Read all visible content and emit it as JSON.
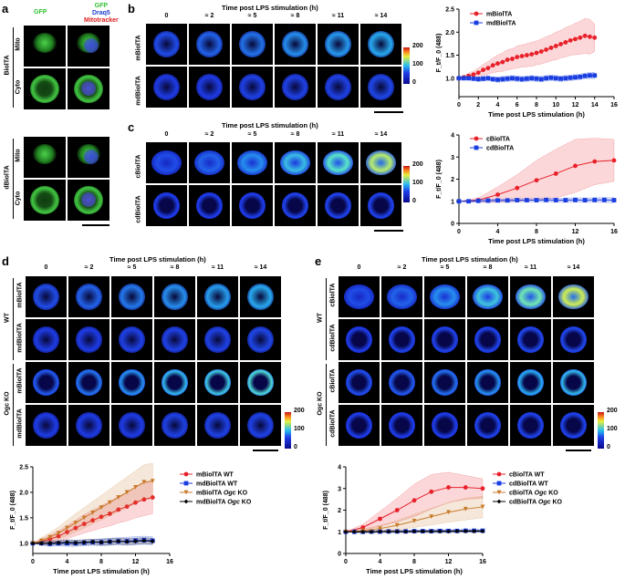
{
  "panels": {
    "a": {
      "letter": "a",
      "col_gfp": "GFP",
      "col_merge": [
        "GFP",
        "Draq5",
        "Mitotracker"
      ],
      "group1": "BiolTA",
      "group2": "dBiolTA",
      "row_mito": "Mito",
      "row_cyto": "Cyto"
    },
    "b": {
      "letter": "b",
      "title": "Time post LPS stimulation (h)",
      "rows": [
        "mBiolTA",
        "mdBiolTA"
      ]
    },
    "c": {
      "letter": "c",
      "title": "Time post LPS stimulation (h)",
      "rows": [
        "cBiolTA",
        "cdBiolTA"
      ]
    },
    "d": {
      "letter": "d",
      "title": "Time post LPS stimulation (h)",
      "rows": [
        "mBiolTA",
        "mdBiolTA",
        "mBiolTA",
        "mdBiolTA"
      ],
      "groups": [
        "WT",
        "Ogc KO"
      ]
    },
    "e": {
      "letter": "e",
      "title": "Time post LPS stimulation (h)",
      "rows": [
        "cBiolTA",
        "cdBiolTA",
        "cBiolTA",
        "cdBiolTA"
      ],
      "groups": [
        "WT",
        "Ogc KO"
      ]
    }
  },
  "timepoints": [
    "0",
    "≈ 2",
    "≈ 5",
    "≈ 8",
    "≈ 11",
    "≈ 14"
  ],
  "colorbar": {
    "max": "200",
    "mid": "100",
    "min": "0"
  },
  "chart_data": [
    {
      "id": "b",
      "type": "line",
      "xlabel": "Time post LPS stimulation (h)",
      "ylabel": "F_t/F_0 (488)",
      "xlim": [
        0,
        16
      ],
      "ylim": [
        0.6,
        2.5
      ],
      "xticks": [
        0,
        2,
        4,
        6,
        8,
        10,
        12,
        14,
        16
      ],
      "yticks": [
        1.0,
        1.5,
        2.0,
        2.5
      ],
      "series": [
        {
          "name": "mBiolTA",
          "color": "#e8202a",
          "marker": "circle",
          "x": [
            0,
            0.5,
            1,
            1.5,
            2,
            2.5,
            3,
            3.5,
            4,
            4.5,
            5,
            5.5,
            6,
            6.5,
            7,
            7.5,
            8,
            8.5,
            9,
            9.5,
            10,
            10.5,
            11,
            11.5,
            12,
            12.5,
            13,
            13.5,
            14
          ],
          "y": [
            1.0,
            1.02,
            1.05,
            1.08,
            1.12,
            1.18,
            1.22,
            1.28,
            1.32,
            1.35,
            1.4,
            1.42,
            1.46,
            1.48,
            1.5,
            1.52,
            1.55,
            1.58,
            1.62,
            1.66,
            1.7,
            1.74,
            1.78,
            1.82,
            1.85,
            1.88,
            1.92,
            1.9,
            1.88
          ],
          "err": [
            0,
            0.04,
            0.06,
            0.08,
            0.1,
            0.12,
            0.14,
            0.16,
            0.18,
            0.2,
            0.22,
            0.22,
            0.24,
            0.24,
            0.25,
            0.26,
            0.26,
            0.27,
            0.28,
            0.28,
            0.3,
            0.3,
            0.32,
            0.32,
            0.34,
            0.36,
            0.38,
            0.38,
            0.3
          ]
        },
        {
          "name": "mdBiolTA",
          "color": "#1a3ee0",
          "marker": "square",
          "x": [
            0,
            0.5,
            1,
            1.5,
            2,
            2.5,
            3,
            3.5,
            4,
            4.5,
            5,
            5.5,
            6,
            6.5,
            7,
            7.5,
            8,
            8.5,
            9,
            9.5,
            10,
            10.5,
            11,
            11.5,
            12,
            12.5,
            13,
            13.5,
            14
          ],
          "y": [
            1.0,
            1.0,
            1.0,
            0.99,
            0.98,
            0.99,
            1.0,
            0.98,
            0.97,
            0.98,
            0.99,
            1.0,
            0.99,
            0.98,
            0.99,
            1.0,
            0.99,
            0.98,
            1.0,
            1.01,
            1.0,
            0.99,
            1.0,
            1.01,
            1.02,
            1.03,
            1.05,
            1.06,
            1.06
          ],
          "err": [
            0,
            0.03,
            0.04,
            0.04,
            0.05,
            0.05,
            0.05,
            0.05,
            0.06,
            0.06,
            0.06,
            0.06,
            0.06,
            0.06,
            0.06,
            0.06,
            0.06,
            0.06,
            0.06,
            0.06,
            0.06,
            0.06,
            0.06,
            0.06,
            0.06,
            0.06,
            0.06,
            0.07,
            0.07
          ]
        }
      ]
    },
    {
      "id": "c",
      "type": "line",
      "xlabel": "Time post LPS stimulation (h)",
      "ylabel": "F_t/F_0 (488)",
      "xlim": [
        0,
        16
      ],
      "ylim": [
        0,
        4
      ],
      "xticks": [
        0,
        4,
        8,
        12,
        16
      ],
      "yticks": [
        0,
        1,
        2,
        3,
        4
      ],
      "series": [
        {
          "name": "cBiolTA",
          "color": "#e8202a",
          "marker": "circle",
          "x": [
            0,
            2,
            4,
            6,
            8,
            10,
            12,
            14,
            16
          ],
          "y": [
            1.0,
            1.05,
            1.3,
            1.6,
            1.95,
            2.25,
            2.6,
            2.8,
            2.85
          ],
          "err": [
            0,
            0.1,
            0.35,
            0.6,
            0.9,
            1.1,
            1.2,
            1.05,
            0.95
          ]
        },
        {
          "name": "cdBiolTA",
          "color": "#1a3ee0",
          "marker": "square",
          "x": [
            0,
            1,
            2,
            3,
            4,
            5,
            6,
            7,
            8,
            9,
            10,
            11,
            12,
            13,
            14,
            15,
            16
          ],
          "y": [
            1.0,
            1.0,
            1.02,
            1.03,
            1.04,
            1.04,
            1.05,
            1.05,
            1.05,
            1.06,
            1.05,
            1.05,
            1.06,
            1.05,
            1.06,
            1.06,
            1.05
          ],
          "err": [
            0,
            0.05,
            0.06,
            0.06,
            0.07,
            0.07,
            0.08,
            0.08,
            0.08,
            0.09,
            0.09,
            0.1,
            0.1,
            0.1,
            0.1,
            0.11,
            0.11
          ]
        }
      ]
    },
    {
      "id": "d",
      "type": "line",
      "xlabel": "Time post LPS stimulation (h)",
      "ylabel": "F_t/F_0 (488)",
      "xlim": [
        0,
        16
      ],
      "ylim": [
        0.8,
        2.5
      ],
      "xticks": [
        0,
        4,
        8,
        12,
        16
      ],
      "yticks": [
        1.0,
        1.5,
        2.0,
        2.5
      ],
      "series": [
        {
          "name": "mBiolTA WT",
          "color": "#e8202a",
          "marker": "circle",
          "x": [
            0,
            1,
            2,
            3,
            4,
            5,
            6,
            7,
            8,
            9,
            10,
            11,
            12,
            13,
            14
          ],
          "y": [
            1.0,
            1.03,
            1.08,
            1.14,
            1.22,
            1.3,
            1.38,
            1.45,
            1.52,
            1.58,
            1.66,
            1.72,
            1.8,
            1.86,
            1.9
          ],
          "err": [
            0,
            0.05,
            0.08,
            0.1,
            0.13,
            0.15,
            0.18,
            0.2,
            0.22,
            0.24,
            0.26,
            0.28,
            0.3,
            0.32,
            0.32
          ]
        },
        {
          "name": "mdBiolTA WT",
          "color": "#1a3ee0",
          "marker": "square",
          "x": [
            0,
            1,
            2,
            3,
            4,
            5,
            6,
            7,
            8,
            9,
            10,
            11,
            12,
            13,
            14
          ],
          "y": [
            1.0,
            1.0,
            0.99,
            1.0,
            1.0,
            1.0,
            1.01,
            1.02,
            1.02,
            1.03,
            1.04,
            1.04,
            1.05,
            1.06,
            1.05
          ],
          "err": [
            0,
            0.04,
            0.05,
            0.05,
            0.06,
            0.06,
            0.06,
            0.06,
            0.07,
            0.07,
            0.07,
            0.08,
            0.08,
            0.08,
            0.08
          ]
        },
        {
          "name": "mBiolTA Ogc KO",
          "color": "#c87a2a",
          "marker": "triangle",
          "x": [
            0,
            1,
            2,
            3,
            4,
            5,
            6,
            7,
            8,
            9,
            10,
            11,
            12,
            13,
            14
          ],
          "y": [
            1.0,
            1.05,
            1.12,
            1.2,
            1.3,
            1.4,
            1.5,
            1.6,
            1.7,
            1.8,
            1.9,
            2.0,
            2.1,
            2.2,
            2.22
          ],
          "err": [
            0,
            0.06,
            0.09,
            0.12,
            0.15,
            0.18,
            0.2,
            0.22,
            0.24,
            0.26,
            0.28,
            0.3,
            0.32,
            0.34,
            0.35
          ]
        },
        {
          "name": "mdBiolTA Ogc KO",
          "color": "#000000",
          "marker": "diamond",
          "x": [
            0,
            1,
            2,
            3,
            4,
            5,
            6,
            7,
            8,
            9,
            10,
            11,
            12,
            13,
            14
          ],
          "y": [
            1.0,
            1.0,
            1.0,
            1.01,
            1.02,
            1.01,
            1.02,
            1.03,
            1.02,
            1.03,
            1.04,
            1.03,
            1.04,
            1.05,
            1.04
          ],
          "err": [
            0,
            0.03,
            0.04,
            0.04,
            0.05,
            0.05,
            0.05,
            0.05,
            0.06,
            0.06,
            0.06,
            0.06,
            0.06,
            0.06,
            0.06
          ]
        }
      ]
    },
    {
      "id": "e",
      "type": "line",
      "xlabel": "Time post LPS stimulation (h)",
      "ylabel": "F_t/F_0 (488)",
      "xlim": [
        0,
        16
      ],
      "ylim": [
        0,
        4
      ],
      "xticks": [
        0,
        4,
        8,
        12,
        16
      ],
      "yticks": [
        0,
        1,
        2,
        3,
        4
      ],
      "series": [
        {
          "name": "cBiolTA WT",
          "color": "#e8202a",
          "marker": "circle",
          "x": [
            0,
            2,
            4,
            6,
            8,
            10,
            12,
            14,
            16
          ],
          "y": [
            1.0,
            1.2,
            1.6,
            2.0,
            2.45,
            2.85,
            3.05,
            3.05,
            3.0
          ],
          "err": [
            0,
            0.15,
            0.35,
            0.55,
            0.75,
            0.8,
            0.7,
            0.55,
            0.45
          ]
        },
        {
          "name": "cdBiolTA WT",
          "color": "#1a3ee0",
          "marker": "square",
          "x": [
            0,
            1,
            2,
            3,
            4,
            5,
            6,
            7,
            8,
            9,
            10,
            11,
            12,
            13,
            14,
            15,
            16
          ],
          "y": [
            1.0,
            1.0,
            1.0,
            1.01,
            1.01,
            1.02,
            1.02,
            1.02,
            1.03,
            1.03,
            1.03,
            1.04,
            1.04,
            1.04,
            1.05,
            1.05,
            1.05
          ],
          "err": [
            0,
            0.04,
            0.05,
            0.05,
            0.05,
            0.06,
            0.06,
            0.06,
            0.06,
            0.06,
            0.07,
            0.07,
            0.07,
            0.07,
            0.07,
            0.07,
            0.07
          ]
        },
        {
          "name": "cBiolTA Ogc KO",
          "color": "#c87a2a",
          "marker": "triangle",
          "x": [
            0,
            2,
            4,
            6,
            8,
            10,
            12,
            14,
            16
          ],
          "y": [
            1.0,
            1.05,
            1.15,
            1.3,
            1.5,
            1.7,
            1.9,
            2.05,
            2.15
          ],
          "err": [
            0,
            0.08,
            0.15,
            0.22,
            0.3,
            0.38,
            0.45,
            0.5,
            0.5
          ]
        },
        {
          "name": "cdBiolTA Ogc KO",
          "color": "#000000",
          "marker": "diamond",
          "x": [
            0,
            1,
            2,
            3,
            4,
            5,
            6,
            7,
            8,
            9,
            10,
            11,
            12,
            13,
            14,
            15,
            16
          ],
          "y": [
            1.0,
            1.0,
            1.0,
            1.0,
            1.01,
            1.01,
            1.01,
            1.01,
            1.02,
            1.02,
            1.02,
            1.02,
            1.02,
            1.03,
            1.03,
            1.03,
            1.03
          ],
          "err": [
            0,
            0.03,
            0.03,
            0.04,
            0.04,
            0.04,
            0.04,
            0.04,
            0.04,
            0.05,
            0.05,
            0.05,
            0.05,
            0.05,
            0.05,
            0.05,
            0.05
          ]
        }
      ]
    }
  ]
}
